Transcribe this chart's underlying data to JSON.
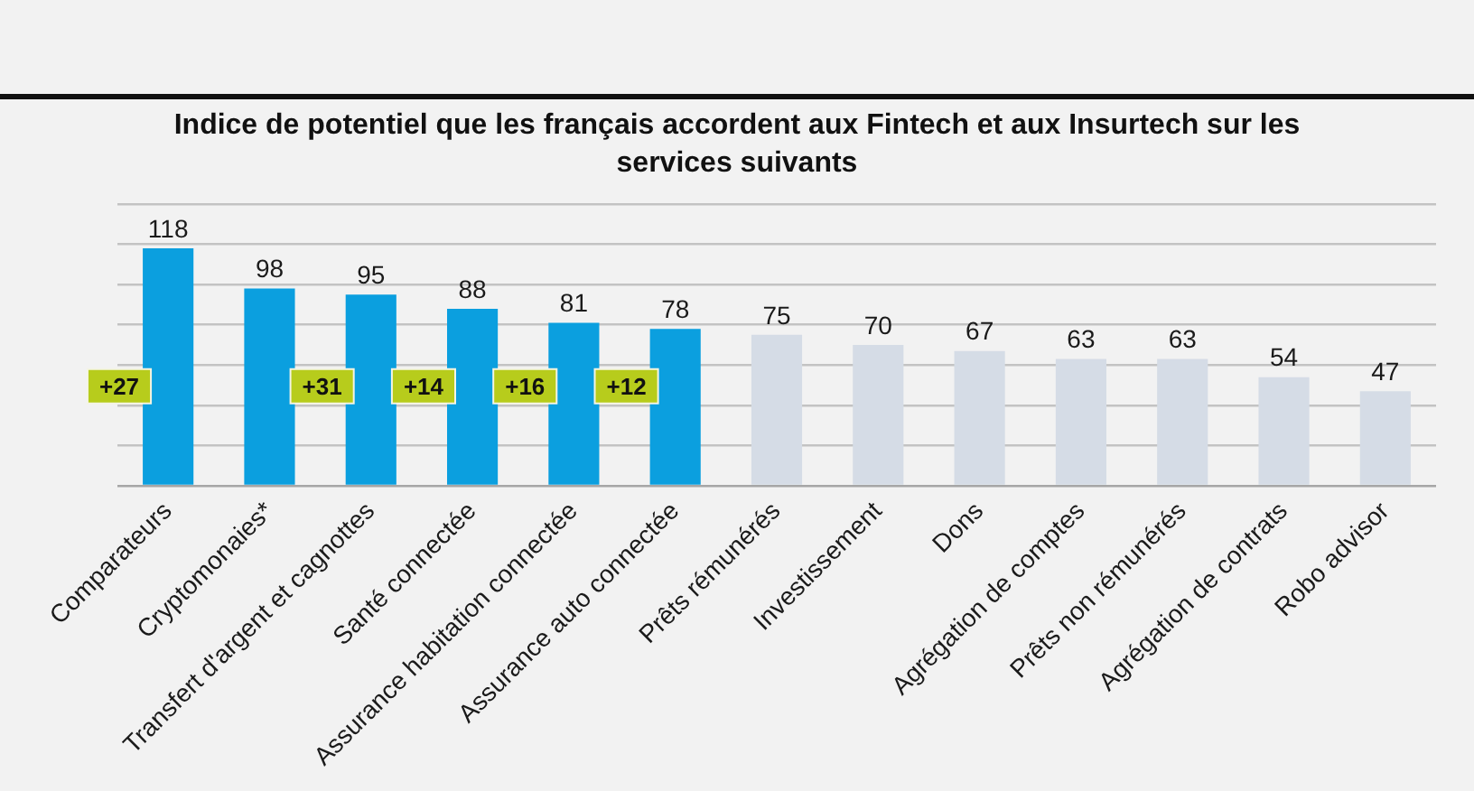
{
  "chart_data": {
    "type": "bar",
    "title": "Indice de potentiel que les français accordent aux Fintech et aux Insurtech sur les services suivants",
    "categories": [
      "Comparateurs",
      "Cryptomonaies*",
      "Transfert d'argent et cagnottes",
      "Santé connectée",
      "Assurance habitation connectée",
      "Assurance auto connectée",
      "Prêts rémunérés",
      "Investissement",
      "Dons",
      "Agrégation de comptes",
      "Prêts non rémunérés",
      "Agrégation de contrats",
      "Robo advisor"
    ],
    "values": [
      118,
      98,
      95,
      88,
      81,
      78,
      75,
      70,
      67,
      63,
      63,
      54,
      47
    ],
    "colors": [
      "#0b9fdf",
      "#0b9fdf",
      "#0b9fdf",
      "#0b9fdf",
      "#0b9fdf",
      "#0b9fdf",
      "#d5dce6",
      "#d5dce6",
      "#d5dce6",
      "#d5dce6",
      "#d5dce6",
      "#d5dce6",
      "#d5dce6"
    ],
    "ylim": [
      0,
      140
    ],
    "yticks": [
      {
        "value": 0,
        "label": null
      },
      {
        "value": 20,
        "label": null
      },
      {
        "value": 40,
        "label": null
      },
      {
        "value": 60,
        "label": null
      },
      {
        "value": 80,
        "label": null
      },
      {
        "value": 100,
        "label": null
      },
      {
        "value": 120,
        "label": null
      },
      {
        "value": 140,
        "label": null
      }
    ],
    "tick_labels": "x",
    "grid": "y",
    "data_labels": true,
    "annotations": [
      "+27",
      "+31",
      "+14",
      "+16",
      "+12"
    ]
  }
}
